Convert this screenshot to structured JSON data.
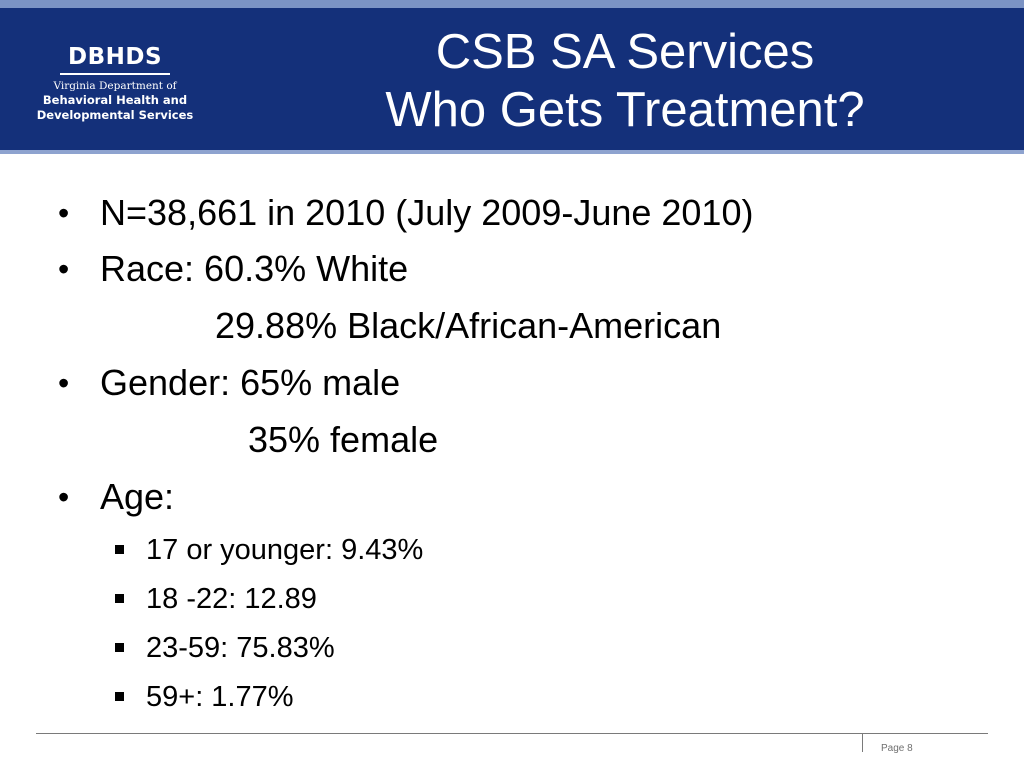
{
  "header": {
    "logo": {
      "name": "DBHDS",
      "line1": "Virginia Department of",
      "line2": "Behavioral Health and",
      "line3": "Developmental Services"
    },
    "title_line1": "CSB SA Services",
    "title_line2": "Who Gets Treatment?"
  },
  "colors": {
    "header_bg": "#14307a",
    "header_border": "#8ea3cf",
    "text": "#000000"
  },
  "body": {
    "n_line": "N=38,661 in 2010 (July 2009-June 2010)",
    "race_line": "Race: 60.3% White",
    "race_cont": "29.88% Black/African-American",
    "gender_line": "Gender: 65% male",
    "gender_cont": "35% female",
    "age_line": "Age:",
    "age_items": [
      "17 or younger: 9.43%",
      "18 -22: 12.89",
      "23-59: 75.83%",
      "59+: 1.77%"
    ]
  },
  "footer": {
    "page_label": "Page 8"
  }
}
